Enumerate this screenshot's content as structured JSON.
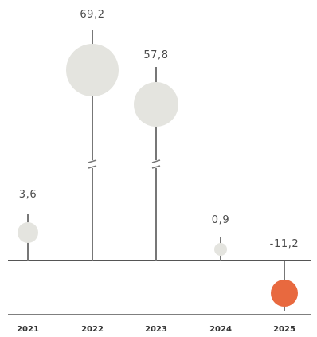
{
  "chart_data": {
    "type": "scatter",
    "title": "",
    "xlabel": "",
    "ylabel": "",
    "categories": [
      "2021",
      "2022",
      "2023",
      "2024",
      "2025"
    ],
    "values": [
      3.6,
      69.2,
      57.8,
      0.9,
      -11.2
    ],
    "value_labels": [
      "3,6",
      "69,2",
      "57,8",
      "0,9",
      "-11,2"
    ],
    "axis_breaks": [
      "2022",
      "2023"
    ],
    "grid": false,
    "legend": "none",
    "colors": {
      "positive": "#e4e4df",
      "negative": "#e8693f",
      "stem": "#777777",
      "axis": "#555555"
    }
  }
}
